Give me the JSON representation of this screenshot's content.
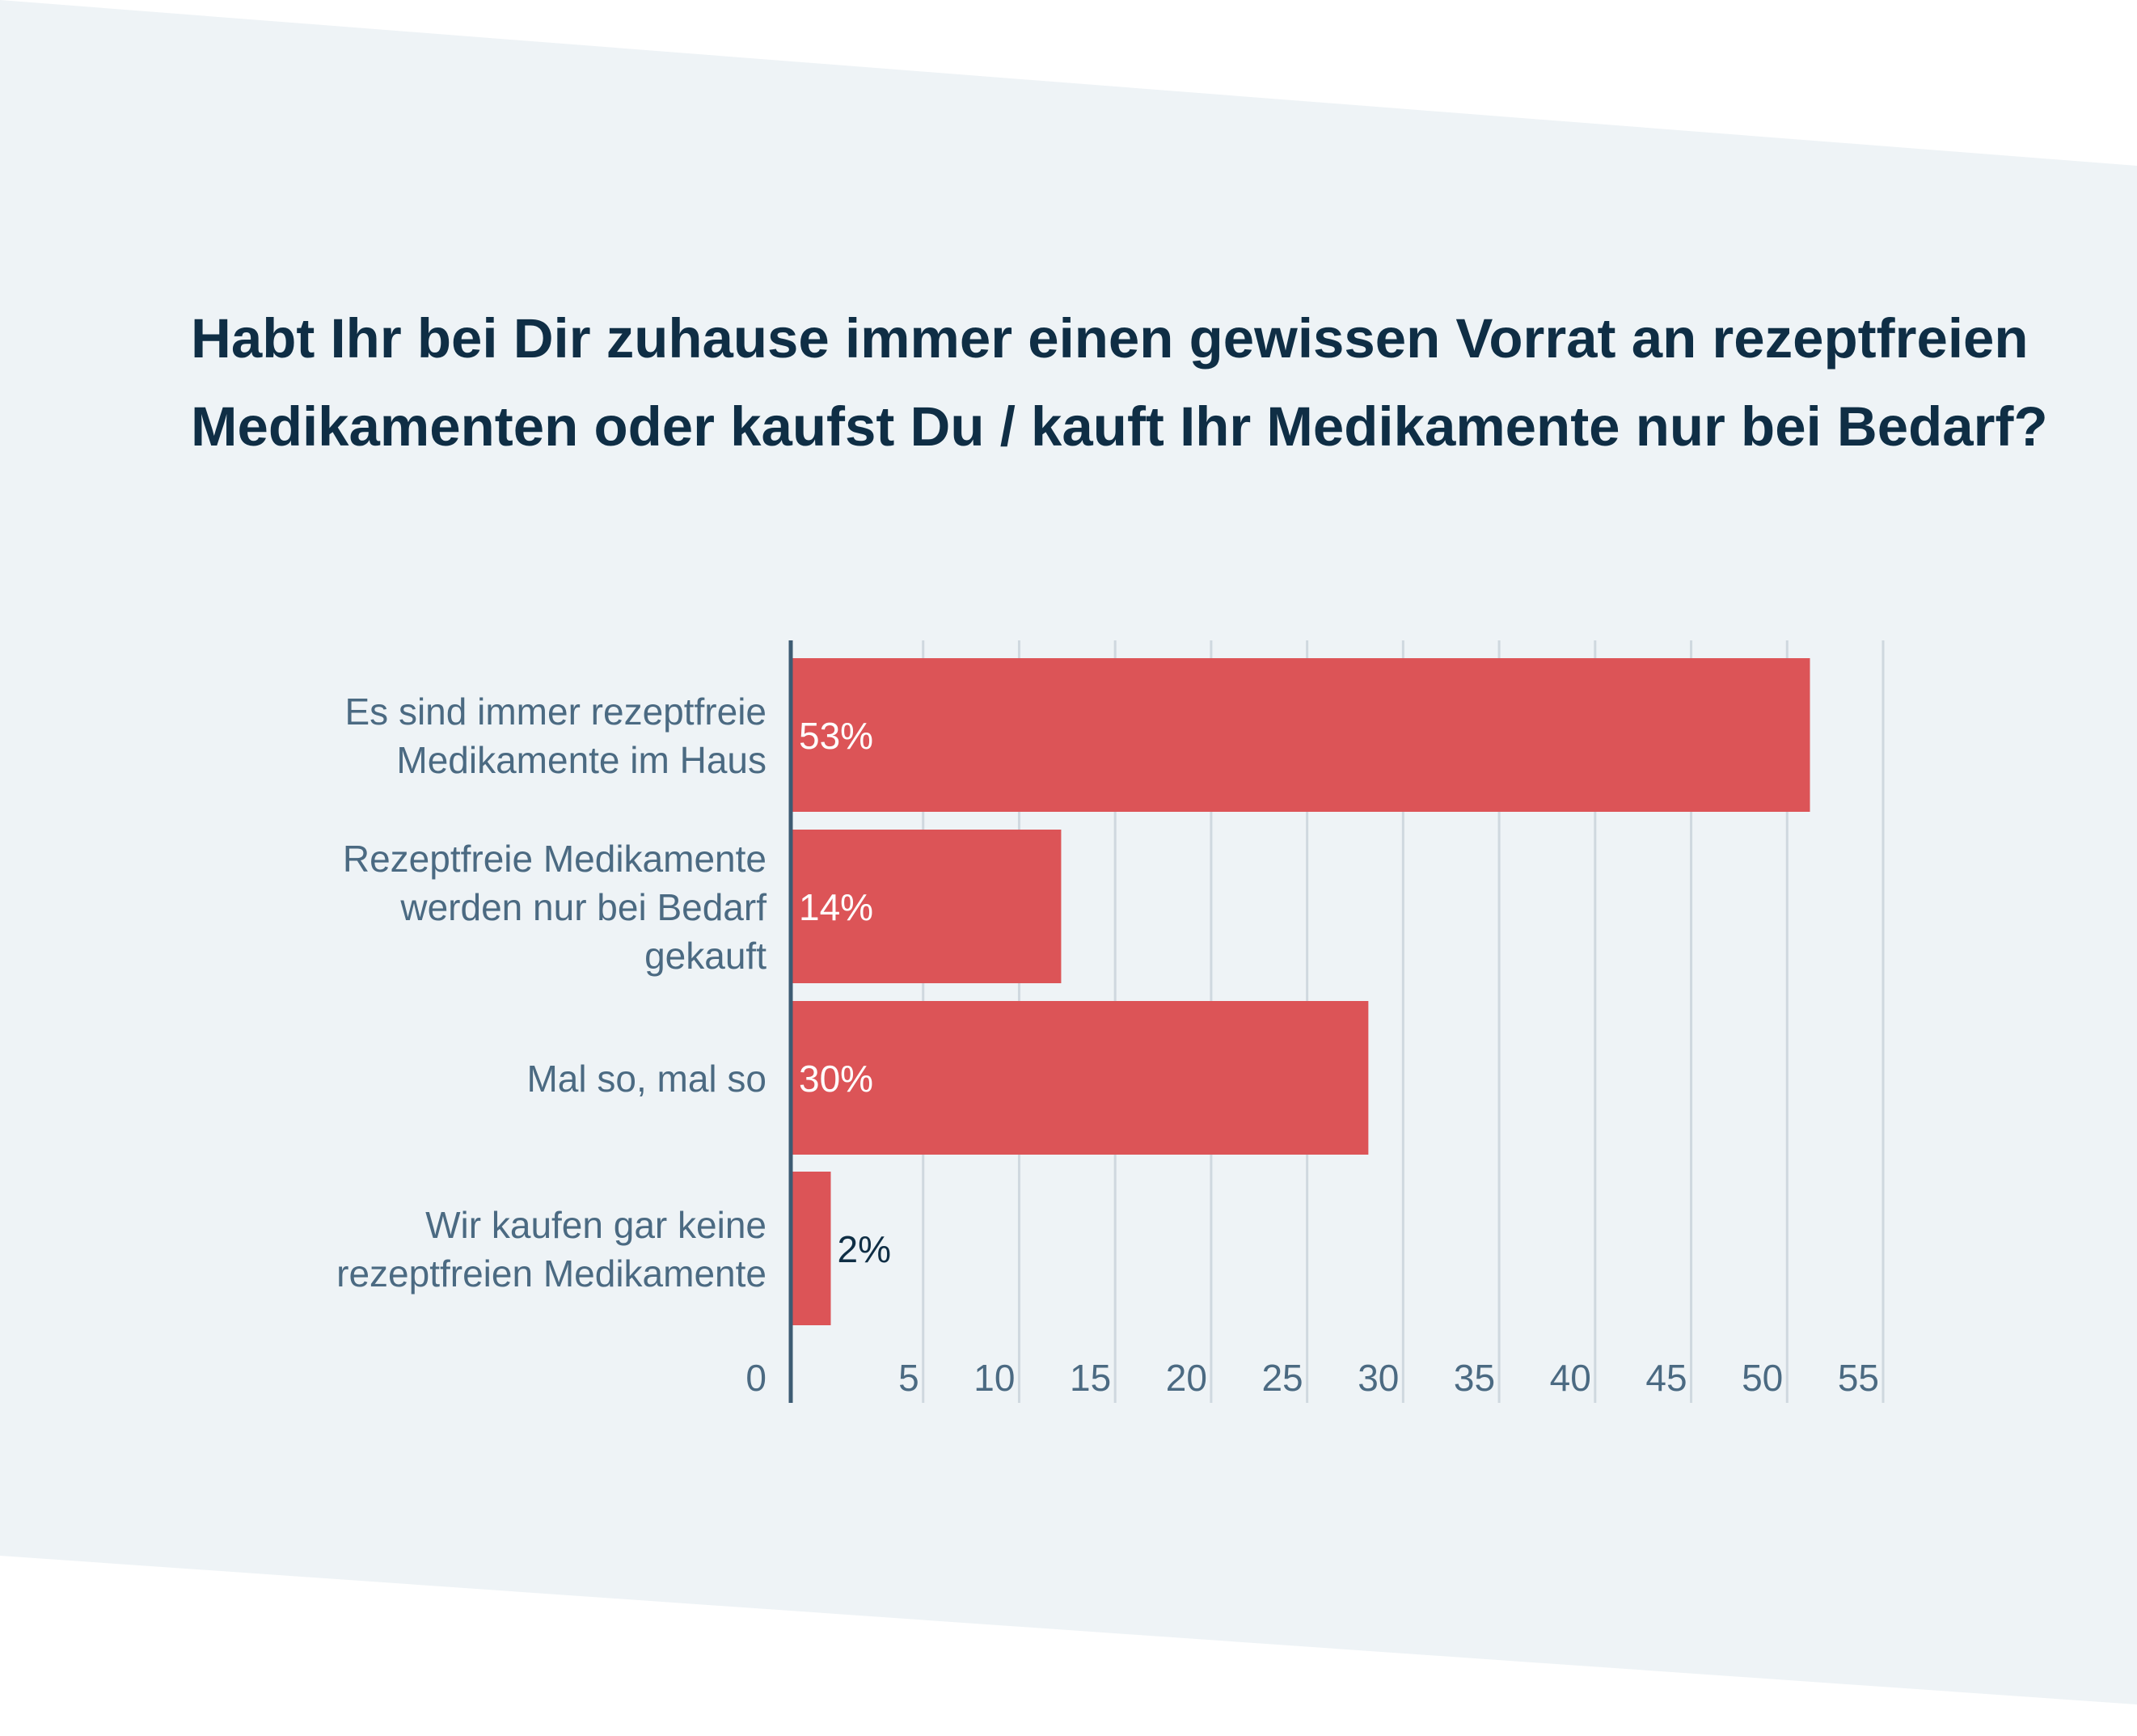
{
  "title": {
    "line1": "Habt Ihr bei Dir zuhause immer einen gewissen Vorrat an rezeptfreien",
    "line2": "Medikamenten oder kaufst Du / kauft Ihr Medikamente nur bei Bedarf?"
  },
  "colors": {
    "page_background": "#ffffff",
    "panel_background": "#eef3f6",
    "title": "#0f2e45",
    "bar": "#dc5457",
    "bar_label_inside": "#ffffff",
    "bar_label_outside": "#0f2e45",
    "category_label": "#4b6a82",
    "tick_label": "#4b6a82",
    "gridline": "#cfd8df",
    "axis_line": "#3d5b73"
  },
  "chart_data": {
    "type": "bar",
    "orientation": "horizontal",
    "categories": [
      [
        "Es sind immer rezeptfreie",
        "Medikamente im Haus"
      ],
      [
        "Rezeptfreie Medikamente",
        "werden nur bei Bedarf",
        "gekauft"
      ],
      [
        "Mal so, mal so"
      ],
      [
        "Wir kaufen gar keine",
        "rezeptfreien Medikamente"
      ]
    ],
    "values": [
      53,
      14,
      30,
      2
    ],
    "value_labels": [
      "53%",
      "14%",
      "30%",
      "2%"
    ],
    "x_ticks": [
      "0",
      "5",
      "10",
      "15",
      "20",
      "25",
      "30",
      "35",
      "40",
      "45",
      "50",
      "55"
    ],
    "xlim": [
      0,
      55
    ],
    "grid": true
  }
}
